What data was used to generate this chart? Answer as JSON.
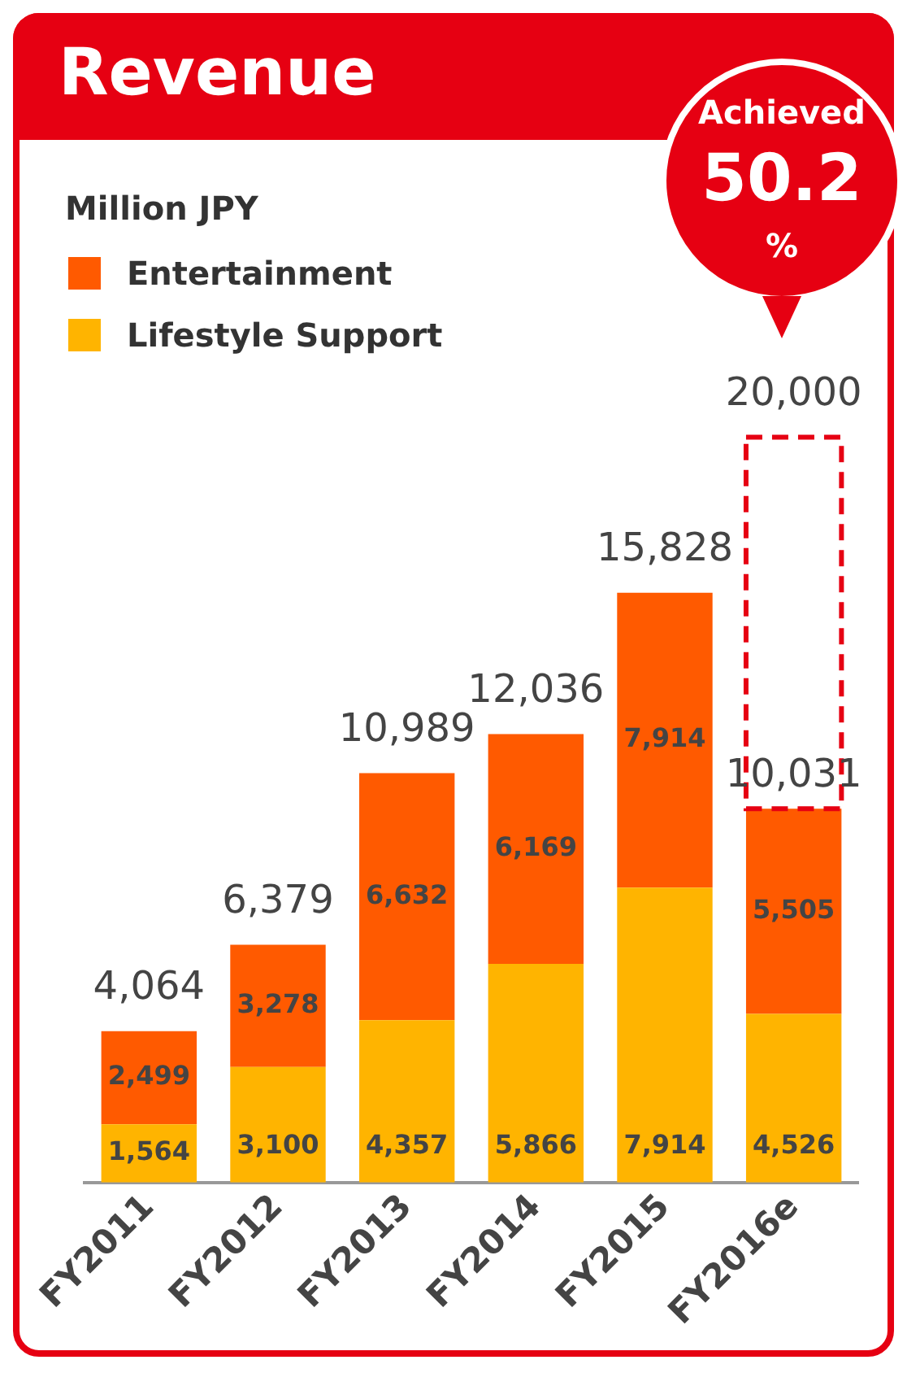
{
  "chart_data": {
    "type": "bar",
    "title": "Revenue",
    "stacked": true,
    "legend": "top left",
    "grid": false,
    "categories": [
      "FY2011",
      "FY2012",
      "FY2013",
      "FY2014",
      "FY2015",
      "FY2016e"
    ],
    "series": [
      {
        "name": "Lifestyle Support",
        "color": "#ffb400",
        "values": [
          1564,
          3100,
          4357,
          5866,
          7914,
          4526
        ],
        "value_labels": [
          "1,564",
          "3,100",
          "4,357",
          "5,866",
          "7,914",
          "4,526"
        ]
      },
      {
        "name": "Entertainment",
        "color": "#ff5a00",
        "values": [
          2499,
          3278,
          6632,
          6169,
          7914,
          5505
        ],
        "value_labels": [
          "2,499",
          "3,278",
          "6,632",
          "6,169",
          "7,914",
          "5,505"
        ]
      },
      {
        "color": "#e60012",
        "line_style": "dashed",
        "values": [
          null,
          null,
          null,
          null,
          null,
          9969
        ]
      }
    ],
    "totals": [
      "4,064",
      "6,379",
      "10,989",
      "12,036",
      "15,828",
      "20,000"
    ],
    "annotations": [
      "Achieved",
      "50.2",
      "%",
      "Million JPY",
      {
        "text": "10,031",
        "x": "FY2016e",
        "y": 10031
      }
    ]
  }
}
